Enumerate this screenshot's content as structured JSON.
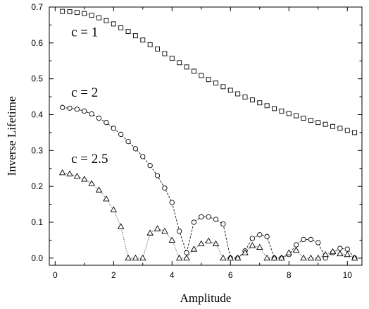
{
  "chart_data": {
    "type": "scatter",
    "xlabel": "Amplitude",
    "ylabel": "Inverse Lifetime",
    "xlim": [
      -0.2,
      10.5
    ],
    "ylim": [
      -0.02,
      0.7
    ],
    "x_ticks": [
      0,
      2,
      4,
      6,
      8,
      10
    ],
    "x_tick_labels": [
      "0",
      "2",
      "4",
      "6",
      "8",
      "10"
    ],
    "y_ticks": [
      0.0,
      0.1,
      0.2,
      0.3,
      0.4,
      0.5,
      0.6,
      0.7
    ],
    "y_tick_labels": [
      "0.0",
      "0.1",
      "0.2",
      "0.3",
      "0.4",
      "0.5",
      "0.6",
      "0.7"
    ],
    "grid": false,
    "annotations": [
      {
        "text": "c = 1",
        "x": 0.55,
        "y": 0.618
      },
      {
        "text": "c = 2",
        "x": 0.55,
        "y": 0.45
      },
      {
        "text": "c = 2.5",
        "x": 0.55,
        "y": 0.265
      }
    ],
    "series": [
      {
        "marker": "square",
        "line": "dotted",
        "x": [
          0.25,
          0.5,
          0.75,
          1.0,
          1.25,
          1.5,
          1.75,
          2.0,
          2.25,
          2.5,
          2.75,
          3.0,
          3.25,
          3.5,
          3.75,
          4.0,
          4.25,
          4.5,
          4.75,
          5.0,
          5.25,
          5.5,
          5.75,
          6.0,
          6.25,
          6.5,
          6.75,
          7.0,
          7.25,
          7.5,
          7.75,
          8.0,
          8.25,
          8.5,
          8.75,
          9.0,
          9.25,
          9.5,
          9.75,
          10.0,
          10.25
        ],
        "y": [
          0.688,
          0.687,
          0.685,
          0.682,
          0.677,
          0.67,
          0.662,
          0.653,
          0.642,
          0.632,
          0.62,
          0.608,
          0.595,
          0.583,
          0.57,
          0.557,
          0.545,
          0.533,
          0.521,
          0.509,
          0.498,
          0.488,
          0.478,
          0.468,
          0.458,
          0.449,
          0.441,
          0.433,
          0.425,
          0.417,
          0.41,
          0.403,
          0.397,
          0.39,
          0.384,
          0.378,
          0.373,
          0.367,
          0.362,
          0.356,
          0.35
        ]
      },
      {
        "marker": "circle",
        "line": "dashed",
        "x": [
          0.25,
          0.5,
          0.75,
          1.0,
          1.25,
          1.5,
          1.75,
          2.0,
          2.25,
          2.5,
          2.75,
          3.0,
          3.25,
          3.5,
          3.75,
          4.0,
          4.25,
          4.5,
          4.75,
          5.0,
          5.25,
          5.5,
          5.75,
          6.0,
          6.25,
          6.5,
          6.75,
          7.0,
          7.25,
          7.5,
          7.75,
          8.0,
          8.25,
          8.5,
          8.75,
          9.0,
          9.25,
          9.5,
          9.75,
          10.0,
          10.25
        ],
        "y": [
          0.42,
          0.418,
          0.415,
          0.41,
          0.402,
          0.39,
          0.378,
          0.362,
          0.345,
          0.325,
          0.305,
          0.283,
          0.258,
          0.23,
          0.195,
          0.155,
          0.075,
          0.015,
          0.1,
          0.115,
          0.115,
          0.108,
          0.095,
          0.0,
          0.0,
          0.02,
          0.055,
          0.065,
          0.06,
          0.0,
          0.0,
          0.01,
          0.037,
          0.052,
          0.052,
          0.043,
          0.0,
          0.015,
          0.027,
          0.025,
          0.0
        ]
      },
      {
        "marker": "triangle",
        "line": "dotted",
        "x": [
          0.25,
          0.5,
          0.75,
          1.0,
          1.25,
          1.5,
          1.75,
          2.0,
          2.25,
          2.5,
          2.75,
          3.0,
          3.25,
          3.5,
          3.75,
          4.0,
          4.25,
          4.5,
          4.75,
          5.0,
          5.25,
          5.5,
          5.75,
          6.0,
          6.25,
          6.5,
          6.75,
          7.0,
          7.25,
          7.5,
          7.75,
          8.0,
          8.25,
          8.5,
          8.75,
          9.0,
          9.25,
          9.5,
          9.75,
          10.0,
          10.25
        ],
        "y": [
          0.238,
          0.235,
          0.228,
          0.22,
          0.208,
          0.19,
          0.165,
          0.135,
          0.088,
          0.0,
          0.0,
          0.0,
          0.07,
          0.082,
          0.075,
          0.05,
          0.0,
          0.0,
          0.025,
          0.04,
          0.048,
          0.04,
          0.0,
          0.0,
          0.0,
          0.015,
          0.035,
          0.03,
          0.0,
          0.0,
          0.0,
          0.015,
          0.022,
          0.0,
          0.0,
          0.0,
          0.01,
          0.018,
          0.012,
          0.01,
          0.0
        ]
      }
    ]
  }
}
